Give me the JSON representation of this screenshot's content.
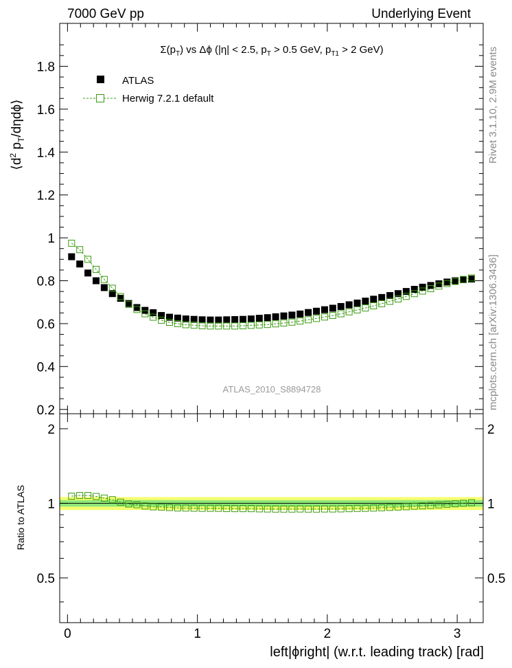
{
  "header": {
    "left": "7000 GeV pp",
    "right": "Underlying Event"
  },
  "side_labels": {
    "rivet": "Rivet 3.1.10, 2.9M events",
    "mcplots": "mcplots.cern.ch [arXiv:1306.3436]"
  },
  "colors": {
    "data": "#000000",
    "mc": "#3a9a10",
    "band_outer": "#f5ff70",
    "band_inner": "#8fe87a",
    "frame": "#000000",
    "watermark": "#999999"
  },
  "chart_data": [
    {
      "type": "scatter",
      "panel": "main",
      "title_parts": {
        "sigma": "Σ(p",
        "sub_T": "T",
        "vs": ") vs Δϕ (|η| < 2.5, p",
        "sub_T2": "T",
        "cut": " > 0.5 GeV, p",
        "sub_T1": "T1",
        "cut2": " > 2 GeV)"
      },
      "ylabel_parts": {
        "a": "⟨d",
        "sup2": "2",
        "b": " p",
        "subT": "T",
        "c": "/dηdϕ⟩"
      },
      "xlim": [
        -0.06,
        3.2
      ],
      "ylim": [
        0.18,
        2.0
      ],
      "yticks": [
        0.2,
        0.4,
        0.6,
        0.8,
        1.0,
        1.2,
        1.4,
        1.6,
        1.8
      ],
      "ytick_labels": [
        "0.2",
        "0.4",
        "0.6",
        "0.8",
        "1",
        "1.2",
        "1.4",
        "1.6",
        "1.8"
      ],
      "legend": [
        {
          "label": "ATLAS",
          "style": "filled-square"
        },
        {
          "label": "Herwig 7.2.1 default",
          "style": "open-square-dashed"
        }
      ],
      "legend_position": "top-left",
      "watermark": "ATLAS_2010_S8894728",
      "x": [
        0.0314,
        0.0942,
        0.157,
        0.2199,
        0.2827,
        0.3456,
        0.4084,
        0.4712,
        0.5341,
        0.5969,
        0.6597,
        0.7226,
        0.7854,
        0.8482,
        0.9111,
        0.9739,
        1.0367,
        1.0996,
        1.1624,
        1.2252,
        1.2881,
        1.3509,
        1.4137,
        1.4765,
        1.5394,
        1.6022,
        1.665,
        1.7279,
        1.7907,
        1.8535,
        1.9164,
        1.9792,
        2.042,
        2.1049,
        2.1677,
        2.2305,
        2.2934,
        2.3562,
        2.419,
        2.4819,
        2.5447,
        2.6075,
        2.6704,
        2.7332,
        2.796,
        2.8588,
        2.9217,
        2.9845,
        3.0473,
        3.1102
      ],
      "series": [
        {
          "name": "ATLAS",
          "values": [
            0.912,
            0.878,
            0.836,
            0.8,
            0.768,
            0.74,
            0.718,
            0.694,
            0.675,
            0.662,
            0.651,
            0.638,
            0.63,
            0.626,
            0.622,
            0.62,
            0.618,
            0.617,
            0.617,
            0.618,
            0.619,
            0.62,
            0.622,
            0.625,
            0.628,
            0.632,
            0.636,
            0.64,
            0.645,
            0.652,
            0.658,
            0.665,
            0.672,
            0.68,
            0.688,
            0.696,
            0.705,
            0.714,
            0.722,
            0.731,
            0.74,
            0.75,
            0.76,
            0.77,
            0.778,
            0.786,
            0.794,
            0.8,
            0.805,
            0.808
          ]
        },
        {
          "name": "Herwig 7.2.1 default",
          "values": [
            0.975,
            0.945,
            0.9,
            0.853,
            0.806,
            0.765,
            0.726,
            0.69,
            0.666,
            0.646,
            0.63,
            0.616,
            0.606,
            0.6,
            0.595,
            0.593,
            0.59,
            0.589,
            0.589,
            0.589,
            0.589,
            0.59,
            0.592,
            0.594,
            0.596,
            0.599,
            0.603,
            0.607,
            0.612,
            0.618,
            0.624,
            0.631,
            0.638,
            0.646,
            0.655,
            0.664,
            0.673,
            0.683,
            0.693,
            0.704,
            0.715,
            0.727,
            0.74,
            0.752,
            0.763,
            0.775,
            0.787,
            0.797,
            0.806,
            0.813
          ]
        }
      ]
    },
    {
      "type": "scatter",
      "panel": "ratio",
      "ylabel": "Ratio to ATLAS",
      "xlabel": "left|ϕright| (w.r.t. leading track) [rad]",
      "xlim": [
        -0.06,
        3.2
      ],
      "ylim": [
        0.33,
        2.3
      ],
      "xticks": [
        0,
        1,
        2,
        3
      ],
      "xtick_labels": [
        "0",
        "1",
        "2",
        "3"
      ],
      "yticks": [
        0.5,
        1.0,
        2.0
      ],
      "ytick_labels": [
        "0.5",
        "1",
        "2"
      ],
      "band_outer": [
        0.94,
        1.06
      ],
      "band_inner": [
        0.97,
        1.03
      ],
      "series": [
        {
          "name": "Herwig 7.2.1 default / ATLAS",
          "values": [
            1.069,
            1.076,
            1.076,
            1.066,
            1.05,
            1.034,
            1.011,
            0.994,
            0.987,
            0.976,
            0.968,
            0.966,
            0.962,
            0.958,
            0.957,
            0.956,
            0.955,
            0.955,
            0.955,
            0.953,
            0.952,
            0.952,
            0.952,
            0.95,
            0.949,
            0.948,
            0.948,
            0.948,
            0.949,
            0.948,
            0.948,
            0.949,
            0.949,
            0.95,
            0.952,
            0.954,
            0.955,
            0.957,
            0.96,
            0.963,
            0.966,
            0.969,
            0.974,
            0.977,
            0.981,
            0.986,
            0.991,
            0.996,
            1.001,
            1.006
          ]
        }
      ]
    }
  ]
}
